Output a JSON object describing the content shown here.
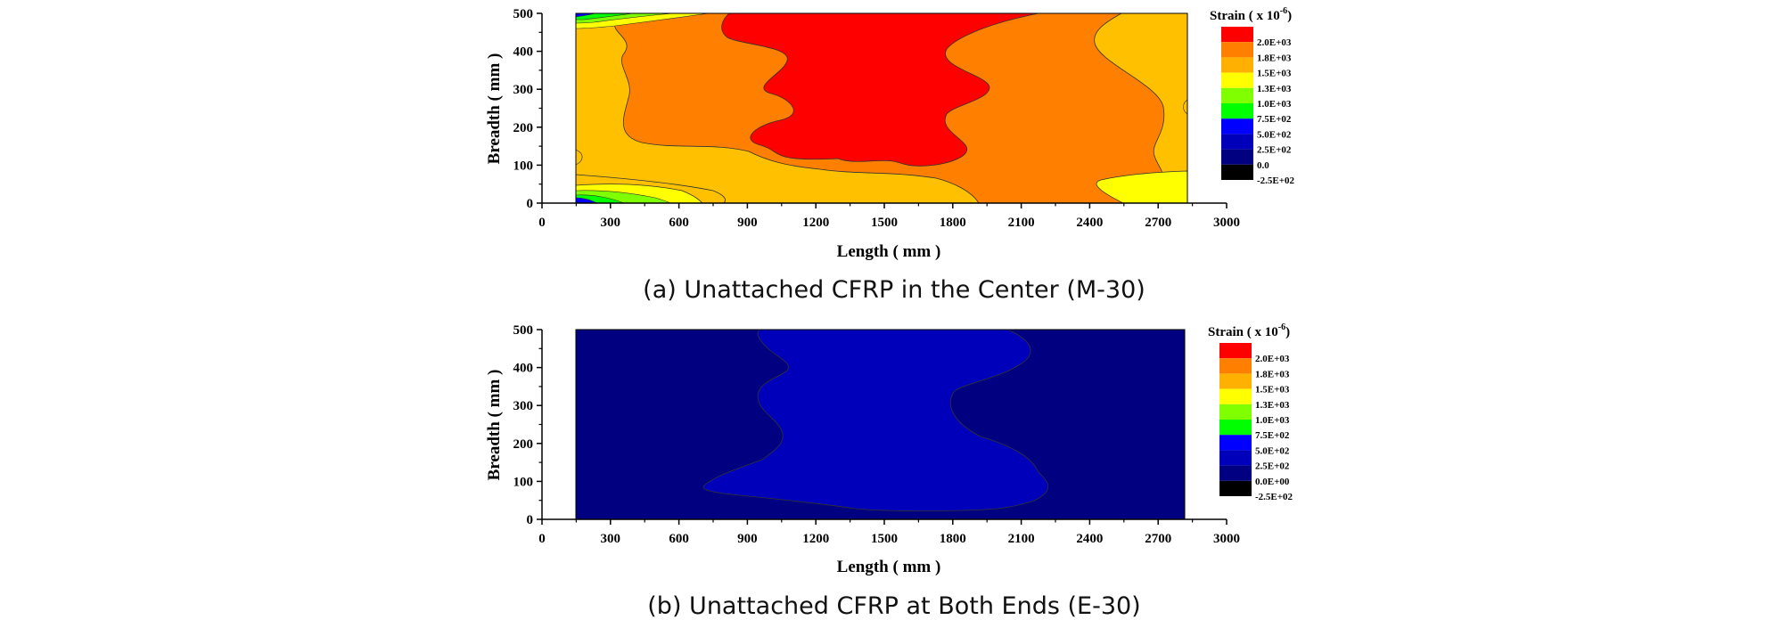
{
  "chart_data": [
    {
      "type": "heatmap",
      "caption": "(a) Unattached CFRP in the Center (M-30)",
      "xlabel": "Length ( mm )",
      "ylabel": "Breadth ( mm )",
      "xlim": [
        0,
        3000
      ],
      "ylim": [
        0,
        500
      ],
      "xticks": [
        0,
        300,
        600,
        900,
        1200,
        1500,
        1800,
        2100,
        2400,
        2700,
        3000
      ],
      "yticks": [
        0,
        100,
        200,
        300,
        400,
        500
      ],
      "data_extent_x": [
        150,
        2850
      ],
      "legend_title": "Strain ( x 10",
      "legend_title_sup": "-6",
      "legend_title_close": ")",
      "legend_levels": [
        "2.0E+03",
        "1.8E+03",
        "1.5E+03",
        "1.3E+03",
        "1.0E+03",
        "7.5E+02",
        "5.0E+02",
        "2.5E+02",
        "0.0",
        "-2.5E+02"
      ],
      "legend_colors": [
        "#ff0000",
        "#ff7f00",
        "#ffb000",
        "#ffff00",
        "#80ff00",
        "#00ff00",
        "#0000ff",
        "#0000bb",
        "#000080",
        "#000000"
      ],
      "dominant_levels": [
        "1.5E+03",
        "1.8E+03",
        "2.0E+03"
      ]
    },
    {
      "type": "heatmap",
      "caption": "(b) Unattached CFRP at Both Ends (E-30)",
      "xlabel": "Length ( mm )",
      "ylabel": "Breadth ( mm )",
      "xlim": [
        0,
        3000
      ],
      "ylim": [
        0,
        500
      ],
      "xticks": [
        0,
        300,
        600,
        900,
        1200,
        1500,
        1800,
        2100,
        2400,
        2700,
        3000
      ],
      "yticks": [
        0,
        100,
        200,
        300,
        400,
        500
      ],
      "data_extent_x": [
        150,
        2850
      ],
      "legend_title": "Strain ( x 10",
      "legend_title_sup": "-6",
      "legend_title_close": ")",
      "legend_levels": [
        "2.0E+03",
        "1.8E+03",
        "1.5E+03",
        "1.3E+03",
        "1.0E+03",
        "7.5E+02",
        "5.0E+02",
        "2.5E+02",
        "0.0E+00",
        "-2.5E+02"
      ],
      "legend_colors": [
        "#ff0000",
        "#ff7f00",
        "#ffb000",
        "#ffff00",
        "#80ff00",
        "#00ff00",
        "#0000ff",
        "#0000bb",
        "#000080",
        "#000000"
      ],
      "dominant_levels": [
        "0.0E+00",
        "2.5E+02"
      ]
    }
  ]
}
